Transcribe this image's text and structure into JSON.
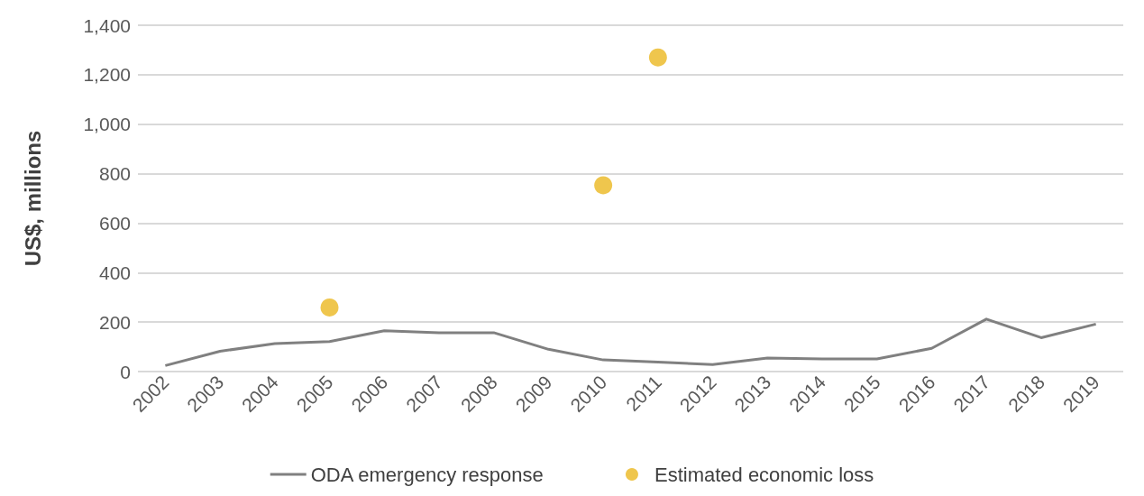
{
  "chart_data": {
    "type": "line",
    "ylabel": "US$, millions",
    "categories": [
      "2002",
      "2003",
      "2004",
      "2005",
      "2006",
      "2007",
      "2008",
      "2009",
      "2010",
      "2011",
      "2012",
      "2013",
      "2014",
      "2015",
      "2016",
      "2017",
      "2018",
      "2019"
    ],
    "series": [
      {
        "name": "ODA emergency response",
        "color": "#808080",
        "marker": "none",
        "values": [
          24,
          82,
          113,
          121,
          165,
          157,
          157,
          90,
          47,
          38,
          28,
          55,
          51,
          51,
          94,
          212,
          137,
          192
        ]
      },
      {
        "name": "Estimated economic loss",
        "type": "scatter",
        "marker": "circle",
        "color": "#ebb820",
        "values": [
          null,
          null,
          null,
          259,
          null,
          null,
          null,
          null,
          753,
          1270,
          null,
          null,
          null,
          null,
          null,
          null,
          null,
          null
        ]
      }
    ],
    "ylim": [
      0,
      1400
    ],
    "yticks": [
      0,
      200,
      400,
      600,
      800,
      {
        "value": 1000,
        "label": "1,000"
      },
      {
        "value": 1200,
        "label": "1,200"
      },
      {
        "value": 1400,
        "label": "1,400"
      }
    ],
    "grid": "y",
    "legend": "bottom"
  }
}
